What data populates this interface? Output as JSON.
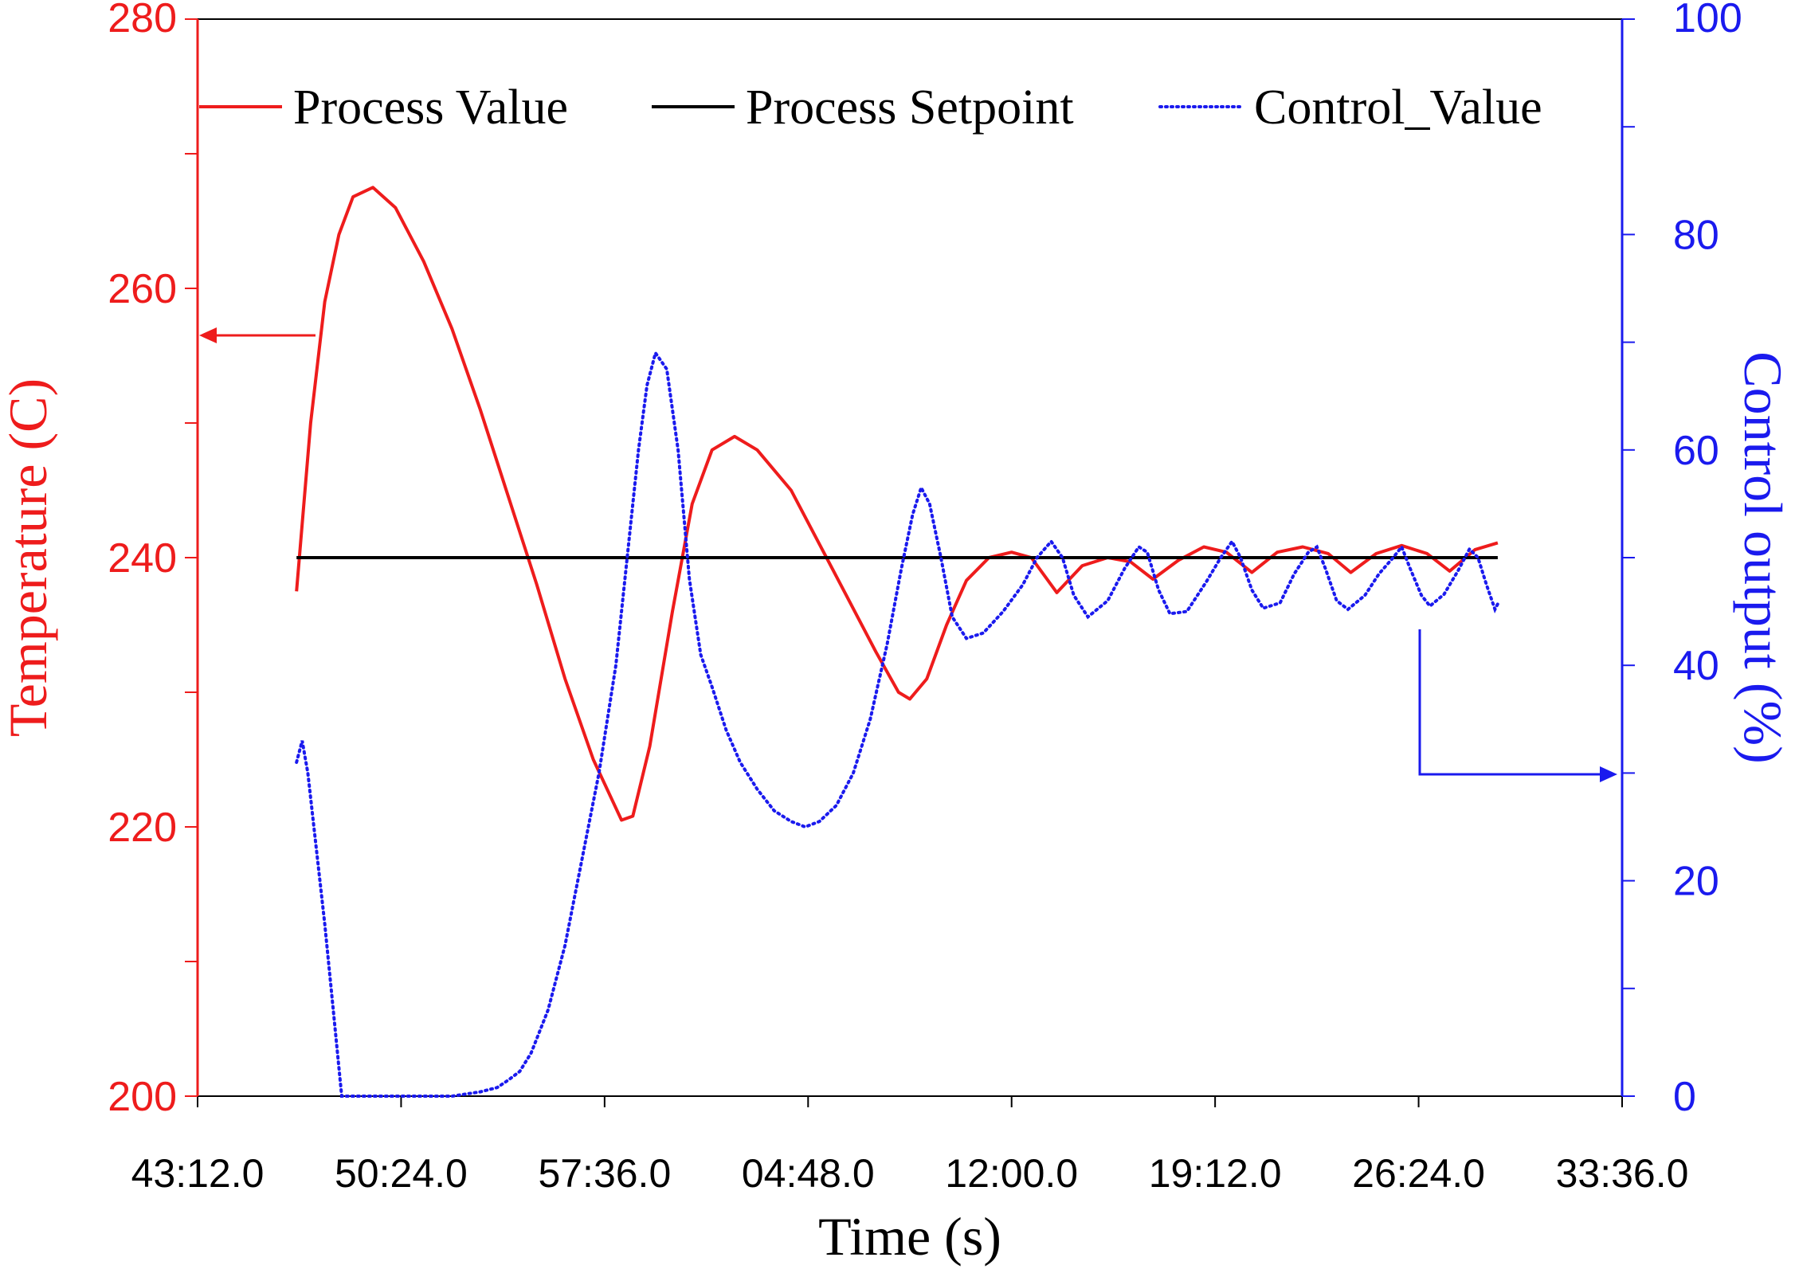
{
  "chart_data": {
    "type": "line",
    "title": "",
    "xlabel": "Time (s)",
    "ylabel_left": "Temperature (C)",
    "ylabel_right": "Control output (%)",
    "x_ticks": [
      "43:12.0",
      "50:24.0",
      "57:36.0",
      "04:48.0",
      "12:00.0",
      "19:12.0",
      "26:24.0",
      "33:36.0"
    ],
    "x_minutes": [
      0,
      7.2,
      14.4,
      21.6,
      28.8,
      36.0,
      43.2,
      50.4
    ],
    "y_left_ticks": [
      "200",
      "220",
      "240",
      "260",
      "280"
    ],
    "y_left_range": [
      200,
      280
    ],
    "y_right_ticks": [
      "0",
      "20",
      "40",
      "60",
      "80",
      "100"
    ],
    "y_right_range": [
      0,
      100
    ],
    "legend_position": "top",
    "colors": {
      "process_value": "#ee1c1c",
      "setpoint": "#000000",
      "control_value": "#1a1aee"
    },
    "series": [
      {
        "name": "Process Value",
        "axis": "left",
        "style": "solid",
        "color": "#ee1c1c",
        "points": [
          [
            3.5,
            237.5
          ],
          [
            4.0,
            250
          ],
          [
            4.5,
            259
          ],
          [
            5.0,
            264
          ],
          [
            5.5,
            266.8
          ],
          [
            6.2,
            267.5
          ],
          [
            7.0,
            266
          ],
          [
            8.0,
            262
          ],
          [
            9.0,
            257
          ],
          [
            10.0,
            251
          ],
          [
            11.0,
            244.5
          ],
          [
            12.0,
            238
          ],
          [
            13.0,
            231
          ],
          [
            14.0,
            225
          ],
          [
            15.0,
            220.5
          ],
          [
            15.4,
            220.8
          ],
          [
            16.0,
            226
          ],
          [
            16.8,
            236
          ],
          [
            17.5,
            244
          ],
          [
            18.2,
            248
          ],
          [
            19.0,
            249
          ],
          [
            19.8,
            248
          ],
          [
            21.0,
            245
          ],
          [
            22.0,
            241
          ],
          [
            23.0,
            237
          ],
          [
            24.0,
            233
          ],
          [
            24.8,
            230
          ],
          [
            25.2,
            229.5
          ],
          [
            25.8,
            231
          ],
          [
            26.5,
            235
          ],
          [
            27.2,
            238.3
          ],
          [
            28.0,
            240
          ],
          [
            28.8,
            240.4
          ],
          [
            29.5,
            240
          ],
          [
            30.4,
            237.4
          ],
          [
            31.3,
            239.4
          ],
          [
            32.2,
            240
          ],
          [
            33.0,
            239.7
          ],
          [
            33.8,
            238.4
          ],
          [
            34.7,
            239.8
          ],
          [
            35.6,
            240.8
          ],
          [
            36.4,
            240.4
          ],
          [
            37.3,
            238.9
          ],
          [
            38.2,
            240.4
          ],
          [
            39.1,
            240.8
          ],
          [
            40.0,
            240.3
          ],
          [
            40.8,
            238.9
          ],
          [
            41.7,
            240.3
          ],
          [
            42.6,
            240.9
          ],
          [
            43.5,
            240.3
          ],
          [
            44.3,
            239.0
          ],
          [
            45.2,
            240.6
          ],
          [
            46.0,
            241.1
          ]
        ]
      },
      {
        "name": "Process Setpoint",
        "axis": "left",
        "style": "solid",
        "color": "#000000",
        "points": [
          [
            3.5,
            240
          ],
          [
            46.0,
            240
          ]
        ]
      },
      {
        "name": "Control_Value",
        "axis": "right",
        "style": "dotted",
        "color": "#1a1aee",
        "points": [
          [
            3.5,
            31
          ],
          [
            3.7,
            33
          ],
          [
            3.9,
            30
          ],
          [
            4.2,
            23
          ],
          [
            4.5,
            16
          ],
          [
            4.8,
            8
          ],
          [
            5.1,
            0
          ],
          [
            6.0,
            0
          ],
          [
            7.0,
            0
          ],
          [
            8.0,
            0
          ],
          [
            9.0,
            0
          ],
          [
            10.0,
            0.4
          ],
          [
            10.6,
            0.8
          ],
          [
            11.0,
            1.5
          ],
          [
            11.4,
            2.3
          ],
          [
            11.8,
            4
          ],
          [
            12.4,
            8
          ],
          [
            13.0,
            14
          ],
          [
            13.6,
            22
          ],
          [
            14.2,
            30
          ],
          [
            14.8,
            40
          ],
          [
            15.2,
            50
          ],
          [
            15.6,
            60
          ],
          [
            15.9,
            66
          ],
          [
            16.2,
            69
          ],
          [
            16.6,
            67.5
          ],
          [
            17.0,
            60
          ],
          [
            17.4,
            48
          ],
          [
            17.8,
            41
          ],
          [
            18.2,
            38
          ],
          [
            18.7,
            34
          ],
          [
            19.2,
            31
          ],
          [
            19.8,
            28.5
          ],
          [
            20.4,
            26.5
          ],
          [
            21.0,
            25.5
          ],
          [
            21.5,
            25
          ],
          [
            22.0,
            25.5
          ],
          [
            22.6,
            27
          ],
          [
            23.2,
            30
          ],
          [
            23.8,
            35
          ],
          [
            24.4,
            42
          ],
          [
            24.9,
            49
          ],
          [
            25.3,
            54
          ],
          [
            25.6,
            56.5
          ],
          [
            25.9,
            55
          ],
          [
            26.3,
            50
          ],
          [
            26.7,
            44.5
          ],
          [
            27.2,
            42.5
          ],
          [
            27.8,
            43
          ],
          [
            28.5,
            45
          ],
          [
            29.2,
            47.5
          ],
          [
            29.7,
            50
          ],
          [
            30.2,
            51.5
          ],
          [
            30.6,
            50
          ],
          [
            31.0,
            46.5
          ],
          [
            31.5,
            44.5
          ],
          [
            32.2,
            46
          ],
          [
            32.8,
            49
          ],
          [
            33.3,
            51
          ],
          [
            33.6,
            50.5
          ],
          [
            34.0,
            47
          ],
          [
            34.4,
            44.8
          ],
          [
            35.0,
            45
          ],
          [
            35.7,
            47.8
          ],
          [
            36.2,
            50
          ],
          [
            36.6,
            51.5
          ],
          [
            36.9,
            50
          ],
          [
            37.3,
            47
          ],
          [
            37.7,
            45.3
          ],
          [
            38.3,
            45.8
          ],
          [
            38.8,
            48.5
          ],
          [
            39.3,
            50.5
          ],
          [
            39.6,
            51
          ],
          [
            39.9,
            49
          ],
          [
            40.3,
            46
          ],
          [
            40.7,
            45.2
          ],
          [
            41.3,
            46.5
          ],
          [
            41.8,
            48.5
          ],
          [
            42.3,
            50
          ],
          [
            42.6,
            51
          ],
          [
            42.9,
            49
          ],
          [
            43.3,
            46.5
          ],
          [
            43.6,
            45.5
          ],
          [
            44.1,
            46.6
          ],
          [
            44.6,
            48.8
          ],
          [
            45.0,
            50.8
          ],
          [
            45.3,
            50
          ],
          [
            45.6,
            47.5
          ],
          [
            45.9,
            45.2
          ],
          [
            46.0,
            45.7
          ]
        ]
      }
    ],
    "annotations": [
      {
        "type": "arrow",
        "points_to": "left axis",
        "from": [
          4.2,
          256.5
        ]
      },
      {
        "type": "arrow",
        "points_to": "right axis",
        "from_right": [
          44.3,
          44
        ],
        "corner_right": [
          44.3,
          30
        ]
      }
    ]
  }
}
